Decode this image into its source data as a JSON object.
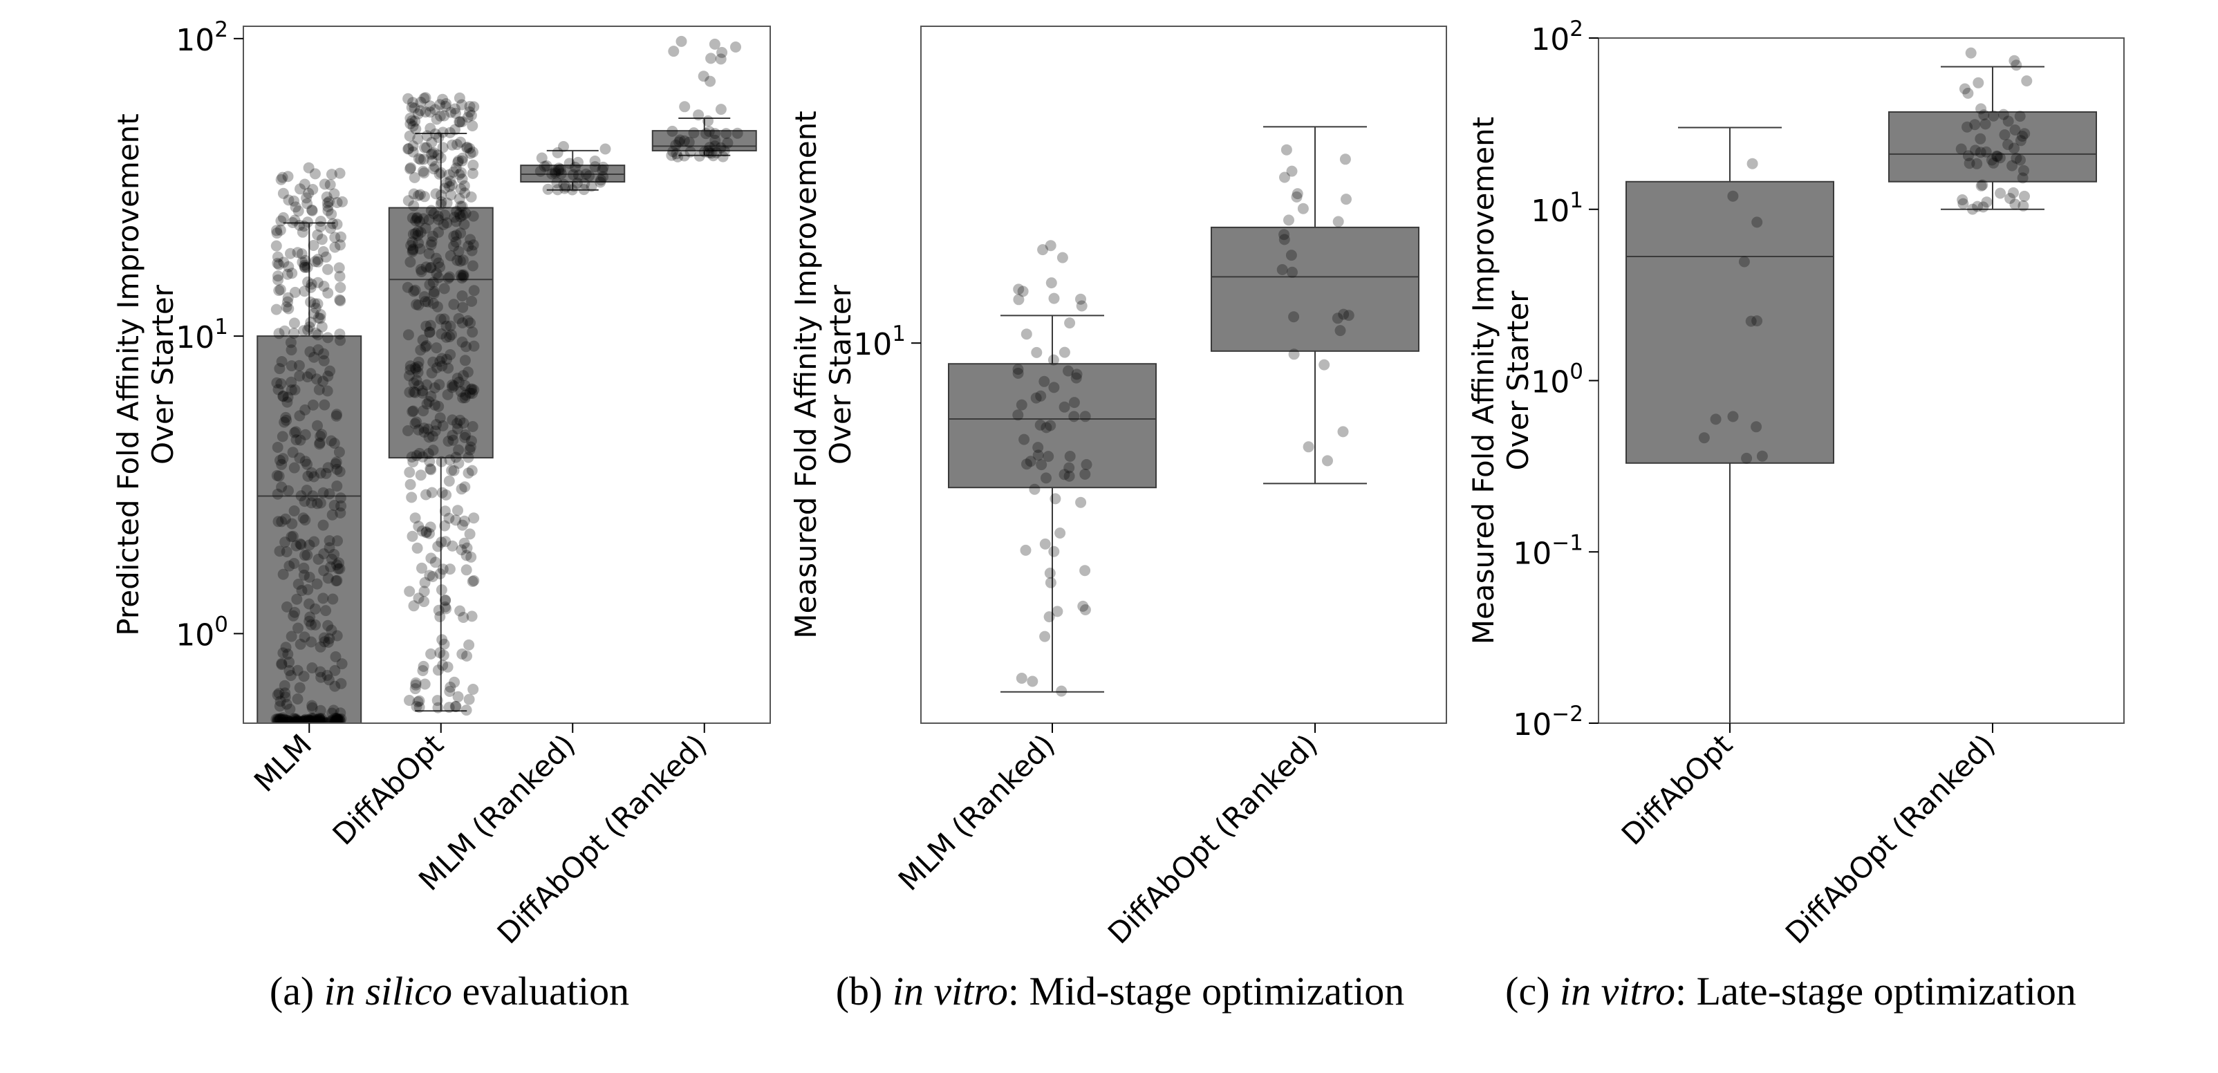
{
  "chart_data": [
    {
      "type": "box",
      "panel": "a",
      "caption": {
        "label": "(a)",
        "italic": "in silico",
        "rest": " evaluation"
      },
      "ylabel": [
        "Predicted Fold Affinity Improvement",
        "Over Starter"
      ],
      "yscale": "log",
      "ylim": [
        0.5,
        110
      ],
      "yticks": [
        {
          "value": 1,
          "base": "10",
          "exp": "0"
        },
        {
          "value": 10,
          "base": "10",
          "exp": "1"
        },
        {
          "value": 100,
          "base": "10",
          "exp": "2"
        }
      ],
      "categories": [
        "MLM",
        "DiffAbOpt",
        "MLM (Ranked)",
        "DiffAbOpt (Ranked)"
      ],
      "boxes": [
        {
          "q1": 0.5,
          "median": 2.9,
          "q3": 10.0,
          "whisker_low": 0.5,
          "whisker_high": 24,
          "points": 420,
          "pmin": 0.52,
          "pmax": 37
        },
        {
          "q1": 3.9,
          "median": 15.5,
          "q3": 27.0,
          "whisker_low": 0.55,
          "whisker_high": 48,
          "points": 440,
          "pmin": 0.55,
          "pmax": 64
        },
        {
          "q1": 33.0,
          "median": 35.0,
          "q3": 37.5,
          "whisker_low": 31.0,
          "whisker_high": 42.0,
          "points": 40,
          "pmin": 31.0,
          "pmax": 44.0
        },
        {
          "q1": 42.0,
          "median": 43.5,
          "q3": 49.0,
          "whisker_low": 40.5,
          "whisker_high": 54.0,
          "points": 45,
          "pmin": 40.0,
          "pmax": 100.0
        }
      ]
    },
    {
      "type": "box",
      "panel": "b",
      "caption": {
        "label": "(b)",
        "italic": "in vitro",
        "rest": ": Mid-stage optimization"
      },
      "ylabel": [
        "Measured Fold Affinity Improvement",
        "Over Starter"
      ],
      "yscale": "log",
      "ylim": [
        1.45,
        50
      ],
      "yticks": [
        {
          "value": 10,
          "base": "10",
          "exp": "1"
        }
      ],
      "categories": [
        "MLM (Ranked)",
        "DiffAbOpt (Ranked)"
      ],
      "boxes": [
        {
          "q1": 4.8,
          "median": 6.8,
          "q3": 9.0,
          "whisker_low": 1.7,
          "whisker_high": 11.5,
          "points": 65,
          "pmin": 1.7,
          "pmax": 17.0
        },
        {
          "q1": 9.6,
          "median": 14.0,
          "q3": 18.0,
          "whisker_low": 4.9,
          "whisker_high": 30.0,
          "points": 25,
          "pmin": 4.9,
          "pmax": 39.0
        }
      ]
    },
    {
      "type": "box",
      "panel": "c",
      "caption": {
        "label": "(c)",
        "italic": "in vitro",
        "rest": ": Late-stage optimization"
      },
      "ylabel": [
        "Measured Fold Affinity Improvement",
        "Over Starter"
      ],
      "yscale": "log",
      "ylim": [
        0.01,
        100
      ],
      "yticks": [
        {
          "value": 0.01,
          "base": "10",
          "exp": "−2"
        },
        {
          "value": 0.1,
          "base": "10",
          "exp": "−1"
        },
        {
          "value": 1,
          "base": "10",
          "exp": "0"
        },
        {
          "value": 10,
          "base": "10",
          "exp": "1"
        },
        {
          "value": 100,
          "base": "10",
          "exp": "2"
        }
      ],
      "categories": [
        "DiffAbOpt",
        "DiffAbOpt (Ranked)"
      ],
      "boxes": [
        {
          "q1": 0.33,
          "median": 5.3,
          "q3": 14.5,
          "whisker_low": 0.01,
          "whisker_high": 30.0,
          "points": 12,
          "pmin": 0.65,
          "pmax": 43.0
        },
        {
          "q1": 14.5,
          "median": 21.0,
          "q3": 37.0,
          "whisker_low": 10.0,
          "whisker_high": 68.0,
          "points": 55,
          "pmin": 10.0,
          "pmax": 82.0
        }
      ]
    }
  ],
  "colors": {
    "box": "#7f7f7f",
    "edge": "#3a3a3a",
    "point": "#000000",
    "axis": "#555555"
  }
}
